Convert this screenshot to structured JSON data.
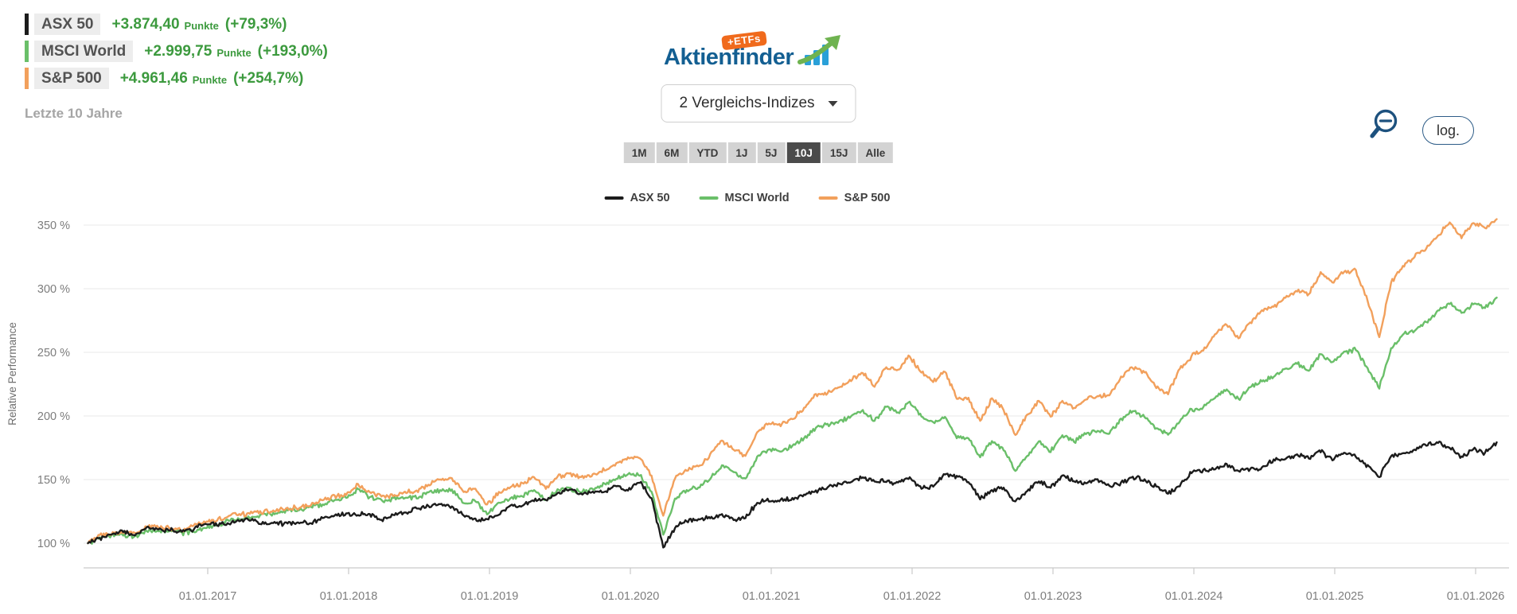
{
  "header": {
    "legend_rows": [
      {
        "name": "ASX 50",
        "points": "+3.874,40",
        "points_unit": "Punkte",
        "percent": "(+79,3%)",
        "color": "#1c1c1c"
      },
      {
        "name": "MSCI World",
        "points": "+2.999,75",
        "points_unit": "Punkte",
        "percent": "(+193,0%)",
        "color": "#6abf69"
      },
      {
        "name": "S&P 500",
        "points": "+4.961,46",
        "points_unit": "Punkte",
        "percent": "(+254,7%)",
        "color": "#f2a05c"
      }
    ],
    "value_color": "#3c9a3e",
    "period_label": "Letzte 10 Jahre",
    "logo": {
      "text": "Aktienfinder",
      "badge": "+ETFs"
    },
    "dropdown": {
      "label": "2 Vergleichs-Indizes",
      "caret_icon": "caret-down"
    },
    "range_buttons": [
      "1M",
      "6M",
      "YTD",
      "1J",
      "5J",
      "10J",
      "15J",
      "Alle"
    ],
    "active_range": "10J",
    "zoom_out_icon": "magnifier-minus",
    "log_button": "log."
  },
  "chart_data": {
    "type": "line",
    "title": "",
    "ylabel": "Relative Performance",
    "ytick_suffix": " %",
    "yticks": [
      100,
      150,
      200,
      250,
      300,
      350
    ],
    "ylim": [
      88,
      372
    ],
    "grid": true,
    "legend_position": "top-center",
    "x_start_month": "2016-02",
    "x_end_month": "2026-02",
    "x_tick_labels": [
      "01.01.2017",
      "01.01.2018",
      "01.01.2019",
      "01.01.2020",
      "01.01.2021",
      "01.01.2022",
      "01.01.2023",
      "01.01.2024",
      "01.01.2025",
      "01.01.2026"
    ],
    "series": [
      {
        "name": "MSCI World",
        "color": "#6abf69",
        "end_percent": 293.0,
        "values": [
          100,
          104.5,
          106,
          106.5,
          105.5,
          109.5,
          109.5,
          110,
          108,
          109.5,
          112,
          114.5,
          117.5,
          119,
          120.5,
          123,
          123,
          126,
          126,
          128.5,
          131,
          134,
          135.5,
          142.5,
          136.5,
          133.5,
          135,
          136,
          135.5,
          140,
          141.5,
          142,
          131.5,
          133,
          122.5,
          132,
          135.5,
          137,
          142,
          133.5,
          142.5,
          143,
          140,
          142.5,
          146.5,
          150.5,
          154.5,
          153.5,
          140.5,
          107,
          135,
          141.5,
          144,
          151,
          161,
          155.5,
          150.5,
          167.5,
          174,
          172,
          176.5,
          182.5,
          190.5,
          193.5,
          196,
          199.5,
          204.5,
          196,
          207,
          202.5,
          211,
          199.5,
          194.5,
          199.5,
          183,
          183,
          167.5,
          180.5,
          173,
          157,
          168.5,
          180,
          172,
          184.5,
          180,
          185.5,
          188.5,
          186.5,
          197.5,
          204,
          199,
          190.5,
          185,
          196,
          205,
          206.5,
          214.5,
          221,
          213.5,
          223,
          227,
          231,
          237,
          241,
          236,
          249,
          242,
          250,
          252,
          237,
          222,
          253,
          264,
          267,
          273.5,
          282.5,
          288,
          281,
          288,
          285,
          293
        ]
      },
      {
        "name": "S&P 500",
        "color": "#f2a05c",
        "end_percent": 354.7,
        "values": [
          100,
          106.5,
          107,
          108,
          108.5,
          113,
          112.5,
          112,
          110,
          114,
          116,
          118,
          122,
          122.5,
          123.5,
          125,
          125.5,
          127.5,
          128,
          130.5,
          133.5,
          137,
          138.5,
          146.5,
          140.5,
          136.5,
          137,
          140,
          141,
          146,
          150.5,
          151,
          140.5,
          143,
          130,
          140,
          144,
          147,
          152.5,
          142.5,
          152.5,
          154.5,
          151.5,
          154,
          157.5,
          162.5,
          167.5,
          167,
          153,
          122,
          151,
          157.5,
          160.5,
          169.5,
          181,
          174,
          169,
          187.5,
          194.5,
          192.5,
          197.5,
          206,
          217,
          218,
          222.5,
          228,
          234,
          223,
          238.5,
          236.5,
          247,
          234,
          227,
          234.5,
          214,
          214,
          196,
          214,
          205,
          185.5,
          200.5,
          212,
          199,
          211.5,
          206,
          213,
          216,
          216.5,
          230.5,
          238,
          234,
          222,
          217.5,
          236.5,
          247,
          251,
          263.5,
          272,
          261,
          273.5,
          283,
          286,
          292.5,
          298,
          296,
          312.5,
          305,
          313,
          315,
          290,
          262,
          305,
          318,
          325,
          332,
          342,
          352,
          340,
          352,
          348,
          354.7
        ]
      },
      {
        "name": "ASX 50",
        "color": "#1c1c1c",
        "end_percent": 179.3,
        "values": [
          100,
          104,
          106.5,
          109,
          106.5,
          112,
          110.5,
          110.5,
          109,
          111,
          115.5,
          114.5,
          115.5,
          118,
          119,
          115.5,
          115.5,
          115.5,
          116,
          116,
          120,
          122,
          123,
          122.5,
          123,
          118.5,
          122.5,
          124,
          127.5,
          129,
          130.5,
          129,
          121.5,
          119,
          118.5,
          122.5,
          129.5,
          130,
          133,
          134.5,
          139,
          142,
          139,
          141,
          140.5,
          144.5,
          141.5,
          148,
          135.5,
          96,
          112.5,
          117.5,
          119,
          119.5,
          122.5,
          118.5,
          120,
          132,
          133.5,
          134,
          135,
          138,
          141.5,
          143.5,
          146.5,
          148.5,
          152,
          149,
          148.5,
          147.5,
          151.5,
          143,
          144.5,
          154,
          152.5,
          148,
          134.5,
          142,
          143,
          132.5,
          141,
          149,
          144,
          153,
          149,
          147,
          150,
          145,
          147.5,
          152,
          150,
          144.5,
          139,
          145,
          155.5,
          157.5,
          158,
          162,
          157,
          158,
          159,
          166,
          166,
          169.5,
          167,
          172,
          165.5,
          171,
          168,
          161,
          152,
          169,
          171,
          174,
          177,
          179,
          175,
          168,
          174,
          171,
          179.3
        ]
      }
    ],
    "legend_order": [
      "ASX 50",
      "MSCI World",
      "S&P 500"
    ]
  }
}
